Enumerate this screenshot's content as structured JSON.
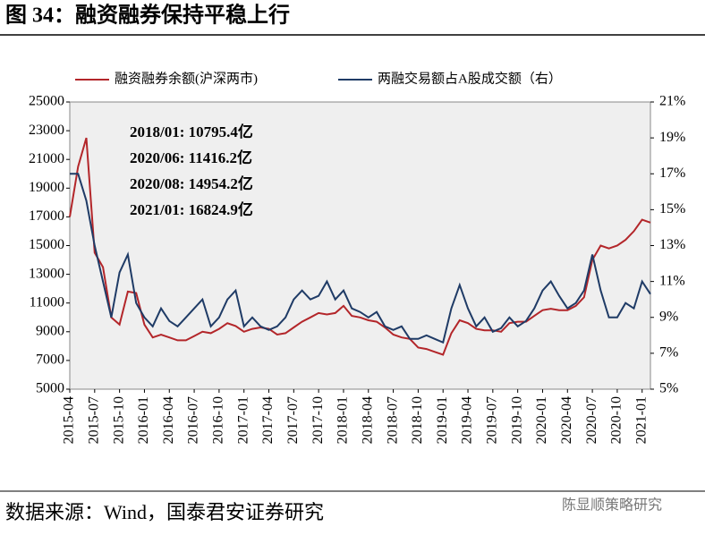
{
  "chart_data": {
    "type": "line",
    "title": "图 34：融资融券保持平稳上行",
    "source": "数据来源：Wind，国泰君安证券研究",
    "watermark": "陈显顺策略研究",
    "annotations": [
      "2018/01:  10795.4亿",
      "2020/06:  11416.2亿",
      "2020/08:  14954.2亿",
      "2021/01:  16824.9亿"
    ],
    "categories": [
      "2015-04",
      "2015-05",
      "2015-06",
      "2015-07",
      "2015-08",
      "2015-09",
      "2015-10",
      "2015-11",
      "2015-12",
      "2016-01",
      "2016-02",
      "2016-03",
      "2016-04",
      "2016-05",
      "2016-06",
      "2016-07",
      "2016-08",
      "2016-09",
      "2016-10",
      "2016-11",
      "2016-12",
      "2017-01",
      "2017-02",
      "2017-03",
      "2017-04",
      "2017-05",
      "2017-06",
      "2017-07",
      "2017-08",
      "2017-09",
      "2017-10",
      "2017-11",
      "2017-12",
      "2018-01",
      "2018-02",
      "2018-03",
      "2018-04",
      "2018-05",
      "2018-06",
      "2018-07",
      "2018-08",
      "2018-09",
      "2018-10",
      "2018-11",
      "2018-12",
      "2019-01",
      "2019-02",
      "2019-03",
      "2019-04",
      "2019-05",
      "2019-06",
      "2019-07",
      "2019-08",
      "2019-09",
      "2019-10",
      "2019-11",
      "2019-12",
      "2020-01",
      "2020-02",
      "2020-03",
      "2020-04",
      "2020-05",
      "2020-06",
      "2020-07",
      "2020-08",
      "2020-09",
      "2020-10",
      "2020-11",
      "2020-12",
      "2021-01",
      "2021-02"
    ],
    "xticks": [
      "2015-04",
      "2015-07",
      "2015-10",
      "2016-01",
      "2016-04",
      "2016-07",
      "2016-10",
      "2017-01",
      "2017-04",
      "2017-07",
      "2017-10",
      "2018-01",
      "2018-04",
      "2018-07",
      "2018-10",
      "2019-01",
      "2019-04",
      "2019-07",
      "2019-10",
      "2020-01",
      "2020-04",
      "2020-07",
      "2020-10",
      "2021-01"
    ],
    "series": [
      {
        "name": "融资融券余额(沪深两市)",
        "color": "#b3262a",
        "axis": "y",
        "values": [
          17000,
          20500,
          22500,
          14500,
          13500,
          10000,
          9500,
          11800,
          11700,
          9500,
          8600,
          8800,
          8600,
          8400,
          8400,
          8700,
          9000,
          8900,
          9200,
          9600,
          9400,
          9000,
          9200,
          9300,
          9200,
          8800,
          8900,
          9300,
          9700,
          10000,
          10300,
          10200,
          10300,
          10800,
          10100,
          10000,
          9800,
          9700,
          9300,
          8800,
          8600,
          8500,
          7900,
          7800,
          7600,
          7400,
          8900,
          9800,
          9600,
          9200,
          9100,
          9100,
          9000,
          9600,
          9700,
          9700,
          10100,
          10500,
          10600,
          10500,
          10500,
          10800,
          11400,
          14000,
          15000,
          14800,
          15000,
          15400,
          16000,
          16800,
          16600
        ]
      },
      {
        "name": "两融交易额占A股成交额（右）",
        "color": "#1f3b66",
        "axis": "y2",
        "values": [
          17,
          17,
          15.5,
          13,
          11,
          9,
          11.5,
          12.5,
          9.8,
          9,
          8.5,
          9.5,
          8.8,
          8.5,
          9,
          9.5,
          10,
          8.5,
          9,
          10,
          10.5,
          8.5,
          9,
          8.5,
          8.3,
          8.5,
          9,
          10,
          10.5,
          10,
          10.2,
          11,
          10,
          10.5,
          9.5,
          9.3,
          9,
          9.3,
          8.5,
          8.3,
          8.5,
          7.8,
          7.8,
          8,
          7.8,
          7.6,
          9.5,
          10.8,
          9.5,
          8.5,
          9,
          8.2,
          8.4,
          9,
          8.5,
          8.8,
          9.5,
          10.5,
          11,
          10.2,
          9.5,
          9.8,
          10.5,
          12.5,
          10.5,
          9,
          9,
          9.8,
          9.5,
          11,
          10.3
        ]
      }
    ],
    "ylim": [
      5000,
      25000
    ],
    "yticks": [
      5000,
      7000,
      9000,
      11000,
      13000,
      15000,
      17000,
      19000,
      21000,
      23000,
      25000
    ],
    "y2lim": [
      5,
      21
    ],
    "y2ticks": [
      {
        "value": 5,
        "label": "5%"
      },
      {
        "value": 7,
        "label": "7%"
      },
      {
        "value": 9,
        "label": "9%"
      },
      {
        "value": 11,
        "label": "11%"
      },
      {
        "value": 13,
        "label": "13%"
      },
      {
        "value": 15,
        "label": "15%"
      },
      {
        "value": 17,
        "label": "17%"
      },
      {
        "value": 19,
        "label": "19%"
      },
      {
        "value": 21,
        "label": "21%"
      }
    ]
  }
}
